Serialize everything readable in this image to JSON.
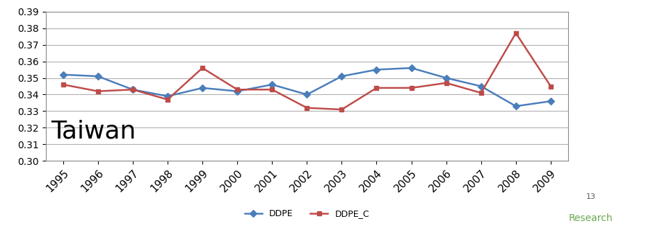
{
  "chart_data": {
    "type": "line",
    "categories": [
      "1995",
      "1996",
      "1997",
      "1998",
      "1999",
      "2000",
      "2001",
      "2002",
      "2003",
      "2004",
      "2005",
      "2006",
      "2007",
      "2008",
      "2009"
    ],
    "series": [
      {
        "name": "DDPE",
        "color": "#4a7ebb",
        "marker": "diamond",
        "values": [
          0.352,
          0.351,
          0.343,
          0.339,
          0.344,
          0.342,
          0.346,
          0.34,
          0.351,
          0.355,
          0.356,
          0.35,
          0.345,
          0.333,
          0.336
        ]
      },
      {
        "name": "DDPE_C",
        "color": "#be4b48",
        "marker": "square",
        "values": [
          0.346,
          0.342,
          0.343,
          0.337,
          0.356,
          0.343,
          0.343,
          0.332,
          0.331,
          0.344,
          0.344,
          0.347,
          0.341,
          0.377,
          0.345
        ]
      }
    ],
    "ylim": [
      0.3,
      0.39
    ],
    "yticks": [
      {
        "value": 0.3,
        "label": "0.30"
      },
      0.31,
      0.32,
      0.33,
      0.34,
      0.35,
      0.36,
      0.37,
      0.38,
      0.39
    ],
    "grid": true,
    "legend": "bottom",
    "annotations": [
      "Taiwan",
      "13",
      "Research"
    ]
  }
}
